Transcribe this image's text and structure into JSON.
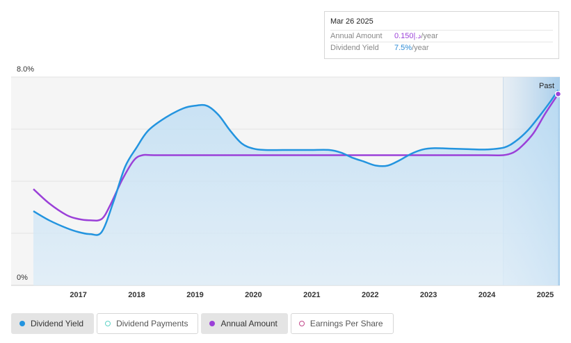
{
  "tooltip": {
    "date": "Mar 26 2025",
    "annual_amount_label": "Annual Amount",
    "annual_amount_value": "0.150|.د",
    "annual_amount_unit": "/year",
    "dividend_yield_label": "Dividend Yield",
    "dividend_yield_value": "7.5%",
    "dividend_yield_unit": "/year"
  },
  "past_label": "Past",
  "legend": [
    {
      "label": "Dividend Yield",
      "color": "#2394df",
      "active": true,
      "hollow": false
    },
    {
      "label": "Dividend Payments",
      "color": "#5fd3c6",
      "active": false,
      "hollow": true
    },
    {
      "label": "Annual Amount",
      "color": "#9b40d8",
      "active": true,
      "hollow": false
    },
    {
      "label": "Earnings Per Share",
      "color": "#c2478a",
      "active": false,
      "hollow": true
    }
  ],
  "chart_data": {
    "type": "line",
    "ylim": [
      0,
      8
    ],
    "y_tick_labels": [
      "8.0%",
      "0%"
    ],
    "x_tick_labels": [
      "2017",
      "2018",
      "2019",
      "2020",
      "2021",
      "2022",
      "2023",
      "2024",
      "2025"
    ],
    "xlim": [
      2016.23,
      2025.25
    ],
    "past_start": 2024.28,
    "grid": true,
    "series": [
      {
        "name": "Dividend Yield",
        "color": "#2394df",
        "x": [
          2016.23,
          2016.5,
          2016.8,
          2017.0,
          2017.2,
          2017.4,
          2017.6,
          2017.8,
          2018.0,
          2018.2,
          2018.5,
          2018.8,
          2019.0,
          2019.2,
          2019.4,
          2019.6,
          2019.8,
          2020.0,
          2020.2,
          2020.5,
          2020.8,
          2021.0,
          2021.3,
          2021.5,
          2021.7,
          2021.9,
          2022.1,
          2022.3,
          2022.5,
          2022.7,
          2022.9,
          2023.1,
          2023.4,
          2023.7,
          2024.0,
          2024.3,
          2024.5,
          2024.7,
          2024.9,
          2025.1,
          2025.22
        ],
        "values": [
          2.85,
          2.5,
          2.2,
          2.05,
          1.97,
          2.05,
          3.2,
          4.55,
          5.3,
          5.95,
          6.45,
          6.8,
          6.9,
          6.9,
          6.55,
          5.95,
          5.45,
          5.25,
          5.2,
          5.2,
          5.2,
          5.2,
          5.2,
          5.1,
          4.9,
          4.75,
          4.6,
          4.6,
          4.8,
          5.05,
          5.22,
          5.27,
          5.25,
          5.23,
          5.22,
          5.3,
          5.55,
          5.95,
          6.5,
          7.1,
          7.5
        ]
      },
      {
        "name": "Annual Amount",
        "color": "#9b40d8",
        "x": [
          2016.23,
          2016.5,
          2016.8,
          2017.0,
          2017.2,
          2017.4,
          2017.55,
          2017.75,
          2017.95,
          2018.1,
          2018.3,
          2019.0,
          2020.0,
          2021.0,
          2022.0,
          2023.0,
          2024.0,
          2024.28,
          2024.45,
          2024.6,
          2024.8,
          2025.0,
          2025.22
        ],
        "values": [
          3.7,
          3.15,
          2.7,
          2.55,
          2.5,
          2.55,
          3.1,
          4.05,
          4.8,
          5.0,
          5.0,
          5.0,
          5.0,
          5.0,
          5.0,
          5.0,
          5.0,
          5.0,
          5.1,
          5.35,
          5.85,
          6.6,
          7.35
        ]
      }
    ]
  }
}
